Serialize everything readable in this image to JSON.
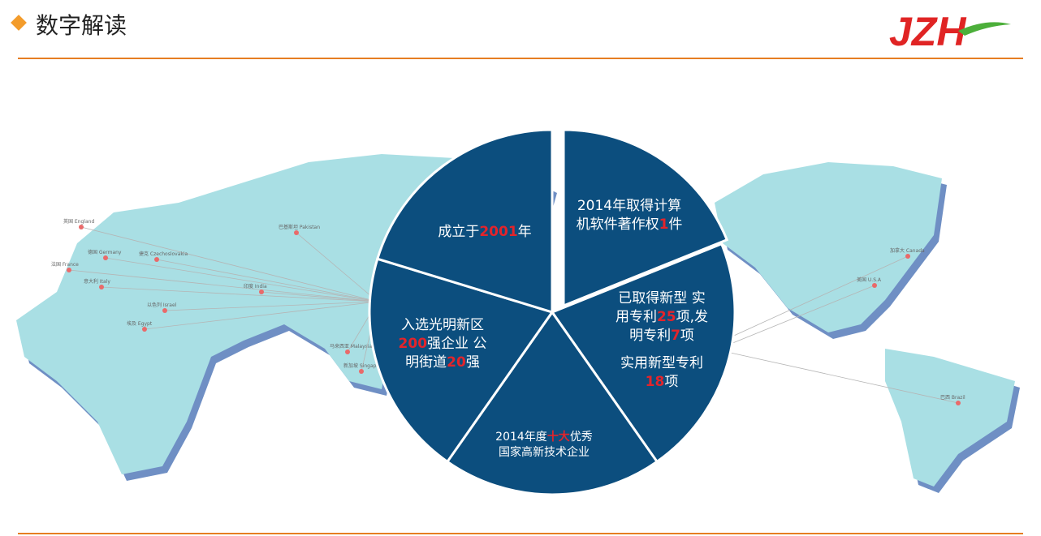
{
  "header": {
    "title": "数字解读",
    "logo": "JZH"
  },
  "slices": [
    {
      "lines": [
        [
          {
            "text": "2014年取得计算",
            "em": false
          }
        ],
        [
          {
            "text": "机软件著作权",
            "em": false
          },
          {
            "text": "1",
            "em": true
          },
          {
            "text": "件",
            "em": false
          }
        ]
      ]
    },
    {
      "lines": [
        [
          {
            "text": "已取得新型 实",
            "em": false
          }
        ],
        [
          {
            "text": "用专利",
            "em": false
          },
          {
            "text": "25",
            "em": true
          },
          {
            "text": "项,发",
            "em": false
          }
        ],
        [
          {
            "text": "明专利",
            "em": false
          },
          {
            "text": "7",
            "em": true
          },
          {
            "text": "项",
            "em": false
          }
        ],
        [
          {
            "text": "实用新型专利",
            "em": false
          }
        ],
        [
          {
            "text": "18",
            "em": true
          },
          {
            "text": "项",
            "em": false
          }
        ]
      ]
    },
    {
      "lines": [
        [
          {
            "text": "2014年度",
            "em": false
          },
          {
            "text": "十大",
            "em": true
          },
          {
            "text": "优秀",
            "em": false
          }
        ],
        [
          {
            "text": "国家高新技术企业",
            "em": false
          }
        ]
      ]
    },
    {
      "lines": [
        [
          {
            "text": "入选光明新区",
            "em": false
          }
        ],
        [
          {
            "text": "200",
            "em": true
          },
          {
            "text": "强企业  公",
            "em": false
          }
        ],
        [
          {
            "text": "明街道",
            "em": false
          },
          {
            "text": "20",
            "em": true
          },
          {
            "text": "强",
            "em": false
          }
        ]
      ]
    },
    {
      "lines": [
        [
          {
            "text": "成立于",
            "em": false
          },
          {
            "text": "2001",
            "em": true
          },
          {
            "text": "年",
            "em": false
          }
        ]
      ]
    }
  ],
  "map_labels": [
    "英国 England",
    "德国 Germany",
    "捷克 Czechoslovakia",
    "法国 France",
    "意大利 Italy",
    "以色列 Israel",
    "埃及 Egypt",
    "巴基斯坦 Pakistan",
    "印度 India",
    "马来西亚 Malaysia",
    "新加坡 Singapore",
    "加拿大 Canada",
    "美国 U.S.A",
    "巴西 Brazil"
  ]
}
